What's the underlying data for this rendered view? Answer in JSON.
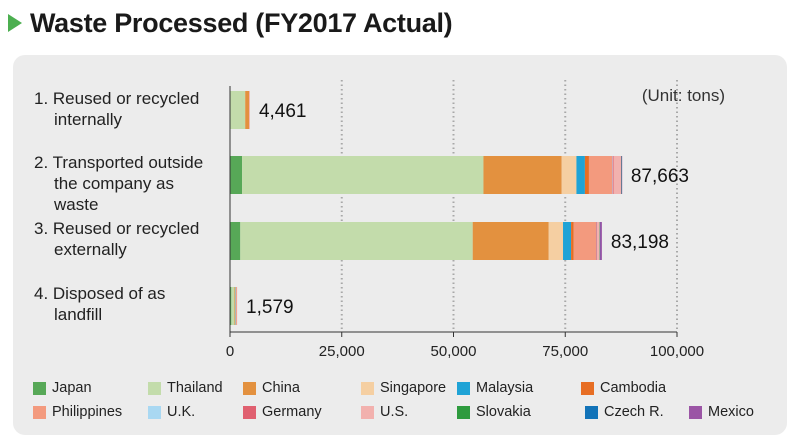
{
  "header": {
    "title": "Waste Processed (FY2017 Actual)"
  },
  "chart_data": {
    "type": "bar",
    "orientation": "horizontal",
    "stacked": true,
    "title": "Waste Processed (FY2017 Actual)",
    "unit_note": "(Unit: tons)",
    "xlim": [
      0,
      100000
    ],
    "xticks": [
      "0",
      "25,000",
      "50,000",
      "75,000",
      "100,000"
    ],
    "xtick_values": [
      0,
      25000,
      50000,
      75000,
      100000
    ],
    "grid": "vertical dotted",
    "legend_position": "bottom",
    "categories": [
      [
        "1. Reused or recycled",
        "internally"
      ],
      [
        "2. Transported outside",
        "the company as",
        "waste"
      ],
      [
        "3. Reused or recycled",
        "externally"
      ],
      [
        "4. Disposed of as",
        "landfill"
      ]
    ],
    "totals": [
      4461,
      87663,
      83198,
      1579
    ],
    "total_labels": [
      "4,461",
      "87,663",
      "83,198",
      "1,579"
    ],
    "series": [
      {
        "name": "Japan",
        "color": "#57a857",
        "values": [
          0,
          2700,
          2300,
          300
        ]
      },
      {
        "name": "Thailand",
        "color": "#c3dcab",
        "values": [
          3400,
          54000,
          52000,
          700
        ]
      },
      {
        "name": "China",
        "color": "#e3913f",
        "values": [
          900,
          17500,
          17000,
          150
        ]
      },
      {
        "name": "Singapore",
        "color": "#f5cfa2",
        "values": [
          0,
          3300,
          3200,
          100
        ]
      },
      {
        "name": "Malaysia",
        "color": "#1fa3d6",
        "values": [
          0,
          1900,
          1800,
          80
        ]
      },
      {
        "name": "Cambodia",
        "color": "#e76e24",
        "values": [
          0,
          900,
          600,
          30
        ]
      },
      {
        "name": "Philippines",
        "color": "#f39a7e",
        "values": [
          0,
          5200,
          5000,
          100
        ]
      },
      {
        "name": "U.K.",
        "color": "#a9d8f2",
        "values": [
          0,
          100,
          50,
          0
        ]
      },
      {
        "name": "Germany",
        "color": "#e06070",
        "values": [
          0,
          200,
          150,
          0
        ]
      },
      {
        "name": "U.S.",
        "color": "#f2b1ae",
        "values": [
          161,
          1700,
          600,
          119
        ]
      },
      {
        "name": "Slovakia",
        "color": "#2e9b3e",
        "values": [
          0,
          50,
          50,
          0
        ]
      },
      {
        "name": "Czech R.",
        "color": "#1273b8",
        "values": [
          0,
          50,
          50,
          0
        ]
      },
      {
        "name": "Mexico",
        "color": "#9b55a5",
        "values": [
          0,
          63,
          398,
          0
        ]
      }
    ]
  }
}
